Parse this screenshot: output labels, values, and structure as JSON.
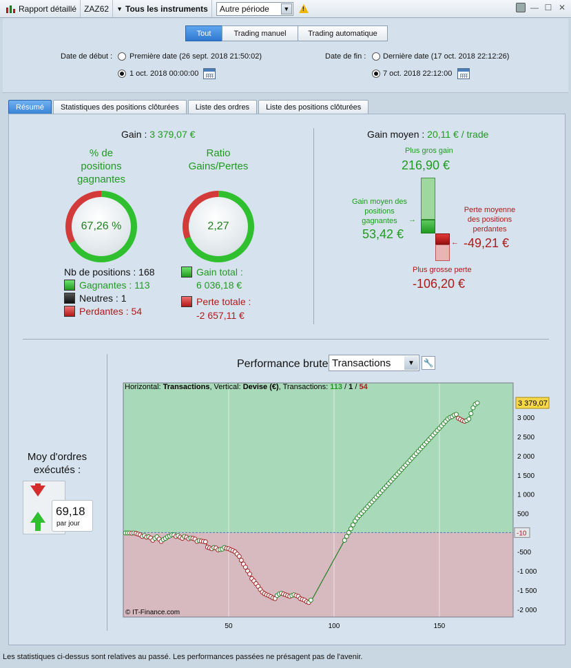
{
  "toolbar": {
    "report_label": "Rapport détaillé",
    "account": "ZAZ62",
    "instruments": "Tous les instruments",
    "period_select": "Autre période",
    "warn_glyph": "!"
  },
  "period": {
    "tabs": [
      {
        "label": "Tout",
        "active": true
      },
      {
        "label": "Trading manuel",
        "active": false
      },
      {
        "label": "Trading automatique",
        "active": false
      }
    ],
    "start_label": "Date de début :",
    "start_opt1": "Première date (26 sept. 2018 21:50:02)",
    "start_opt2": "1 oct. 2018 00:00:00",
    "end_label": "Date de fin :",
    "end_opt1": "Dernière date (17 oct. 2018 22:12:26)",
    "end_opt2": "7 oct. 2018 22:12:00"
  },
  "tabs": [
    {
      "label": "Résumé",
      "active": true
    },
    {
      "label": "Statistiques des positions clôturées",
      "active": false
    },
    {
      "label": "Liste des ordres",
      "active": false
    },
    {
      "label": "Liste des positions clôturées",
      "active": false
    }
  ],
  "summary": {
    "gain_label": "Gain :",
    "gain_value": "3 379,07 €",
    "pct_title_1": "% de",
    "pct_title_2": "positions",
    "pct_title_3": "gagnantes",
    "pct_value": "67,26 %",
    "pct_fraction": 0.6726,
    "ratio_title_1": "Ratio",
    "ratio_title_2": "Gains/Pertes",
    "ratio_value": "2,27",
    "positions_label": "Nb de positions : 168",
    "winners": "Gagnantes : 113",
    "neutral": "Neutres : 1",
    "losers": "Perdantes : 54",
    "gain_total_label": "Gain total :",
    "gain_total_value": "6 036,18 €",
    "loss_total_label": "Perte totale :",
    "loss_total_value": "-2 657,11 €"
  },
  "avg": {
    "title": "Gain moyen :",
    "title_value": "20,11 € / trade",
    "max_gain_label": "Plus gros gain",
    "max_gain_value": "216,90 €",
    "avg_gain_label_1": "Gain moyen des",
    "avg_gain_label_2": "positions",
    "avg_gain_label_3": "gagnantes",
    "avg_gain_value": "53,42 €",
    "avg_loss_label_1": "Perte moyenne",
    "avg_loss_label_2": "des positions",
    "avg_loss_label_3": "perdantes",
    "avg_loss_value": "-49,21 €",
    "max_loss_label": "Plus grosse perte",
    "max_loss_value": "-106,20 €"
  },
  "orders": {
    "label_1": "Moy d'ordres",
    "label_2": "exécutés :",
    "value": "69,18",
    "unit": "par jour"
  },
  "perf": {
    "title": "Performance brute",
    "select": "Transactions",
    "header_h": "Horizontal:",
    "header_h_val": "Transactions",
    "header_v": ", Vertical:",
    "header_v_val": "Devise (€)",
    "header_t": ", Transactions:",
    "header_win": "113",
    "header_sep1": " / ",
    "header_neu": "1",
    "header_sep2": " / ",
    "header_los": "54",
    "copyright": "© IT-Finance.com",
    "last_value_label": "3 379,07",
    "zero_label": "-10"
  },
  "chart_data": {
    "type": "line",
    "xlabel": "",
    "ylabel": "",
    "xlim": [
      0,
      185
    ],
    "ylim": [
      -2200,
      3900
    ],
    "x_ticks": [
      50,
      100,
      150
    ],
    "y_ticks": [
      3000,
      2500,
      2000,
      1500,
      1000,
      500,
      -500,
      -1000,
      -1500,
      -2000
    ],
    "y_tick_labels": [
      "3 000",
      "2 500",
      "2 000",
      "1 500",
      "1 000",
      "500",
      "-500",
      "-1 000",
      "-1 500",
      "-2 000"
    ],
    "colors": {
      "gain_bg": "#a8d9b8",
      "loss_bg": "#d7b9c0",
      "line_up": "#1f7f1f",
      "line_down": "#a01818"
    },
    "series": [
      {
        "x": [
          1,
          2,
          3,
          4,
          5,
          6,
          7,
          8,
          9,
          10,
          11,
          12,
          13,
          14,
          15,
          16,
          17,
          18,
          19,
          20,
          21,
          22,
          23,
          24,
          25,
          26,
          27,
          28,
          29,
          30,
          31,
          32,
          33,
          34,
          35,
          36,
          37,
          38,
          39,
          40,
          41,
          42,
          43,
          44,
          45,
          46,
          47,
          48,
          49,
          50,
          51,
          52,
          53,
          54,
          55,
          56,
          57,
          58,
          59,
          60,
          61,
          62,
          63,
          64,
          65,
          66,
          67,
          68,
          69,
          70,
          71,
          72,
          73,
          74,
          75,
          76,
          77,
          78,
          79,
          80,
          81,
          82,
          83,
          84,
          85,
          86,
          87,
          88,
          89,
          90,
          91,
          92,
          93,
          94,
          95,
          96,
          97,
          98,
          99,
          100,
          101,
          102,
          103,
          104,
          105,
          106,
          107,
          108,
          109,
          110,
          111,
          112,
          113,
          114,
          115,
          116,
          117,
          118,
          119,
          120,
          121,
          122,
          123,
          124,
          125,
          126,
          127,
          128,
          129,
          130,
          131,
          132,
          133,
          134,
          135,
          136,
          137,
          138,
          139,
          140,
          141,
          142,
          143,
          144,
          145,
          146,
          147,
          148,
          149,
          150,
          151,
          152,
          153,
          154,
          155,
          156,
          157,
          158,
          159,
          160,
          161,
          162,
          163,
          164,
          165,
          166,
          167,
          168
        ],
        "y": [
          -10,
          -10,
          -10,
          -15,
          -10,
          -20,
          -40,
          -60,
          -100,
          -80,
          -120,
          -110,
          -140,
          -200,
          -150,
          -110,
          -170,
          -230,
          -180,
          -150,
          -110,
          -90,
          -60,
          -60,
          -100,
          -80,
          -120,
          -150,
          -100,
          -120,
          -160,
          -140,
          -150,
          -170,
          -230,
          -210,
          -220,
          -230,
          -240,
          -380,
          -400,
          -420,
          -390,
          -400,
          -450,
          -440,
          -430,
          -390,
          -410,
          -420,
          -450,
          -470,
          -500,
          -560,
          -620,
          -720,
          -820,
          -900,
          -1000,
          -1080,
          -1200,
          -1260,
          -1330,
          -1400,
          -1480,
          -1550,
          -1590,
          -1620,
          -1640,
          -1670,
          -1700,
          -1720,
          -1640,
          -1600,
          -1580,
          -1600,
          -1620,
          -1640,
          -1660,
          -1640,
          -1620,
          -1640,
          -1660,
          -1720,
          -1740,
          -1760,
          -1800,
          -1820,
          -1760,
          -1700,
          -1600,
          -1500,
          -1400,
          -1300,
          -1200,
          -1100,
          -1000,
          -900,
          -800,
          -700,
          -600,
          -500,
          -400,
          -300,
          -200,
          -100,
          0,
          100,
          200,
          300,
          380,
          440,
          500,
          560,
          620,
          680,
          740,
          800,
          860,
          920,
          980,
          1040,
          1100,
          1160,
          1220,
          1280,
          1340,
          1400,
          1460,
          1520,
          1580,
          1640,
          1700,
          1760,
          1820,
          1880,
          1940,
          2000,
          2060,
          2120,
          2180,
          2240,
          2300,
          2360,
          2420,
          2480,
          2540,
          2600,
          2660,
          2720,
          2780,
          2840,
          2900,
          2960,
          3000,
          3020,
          3060,
          3080,
          2980,
          2950,
          2920,
          2900,
          2920,
          2960,
          3100,
          3250,
          3340,
          3379
        ]
      }
    ]
  }
}
